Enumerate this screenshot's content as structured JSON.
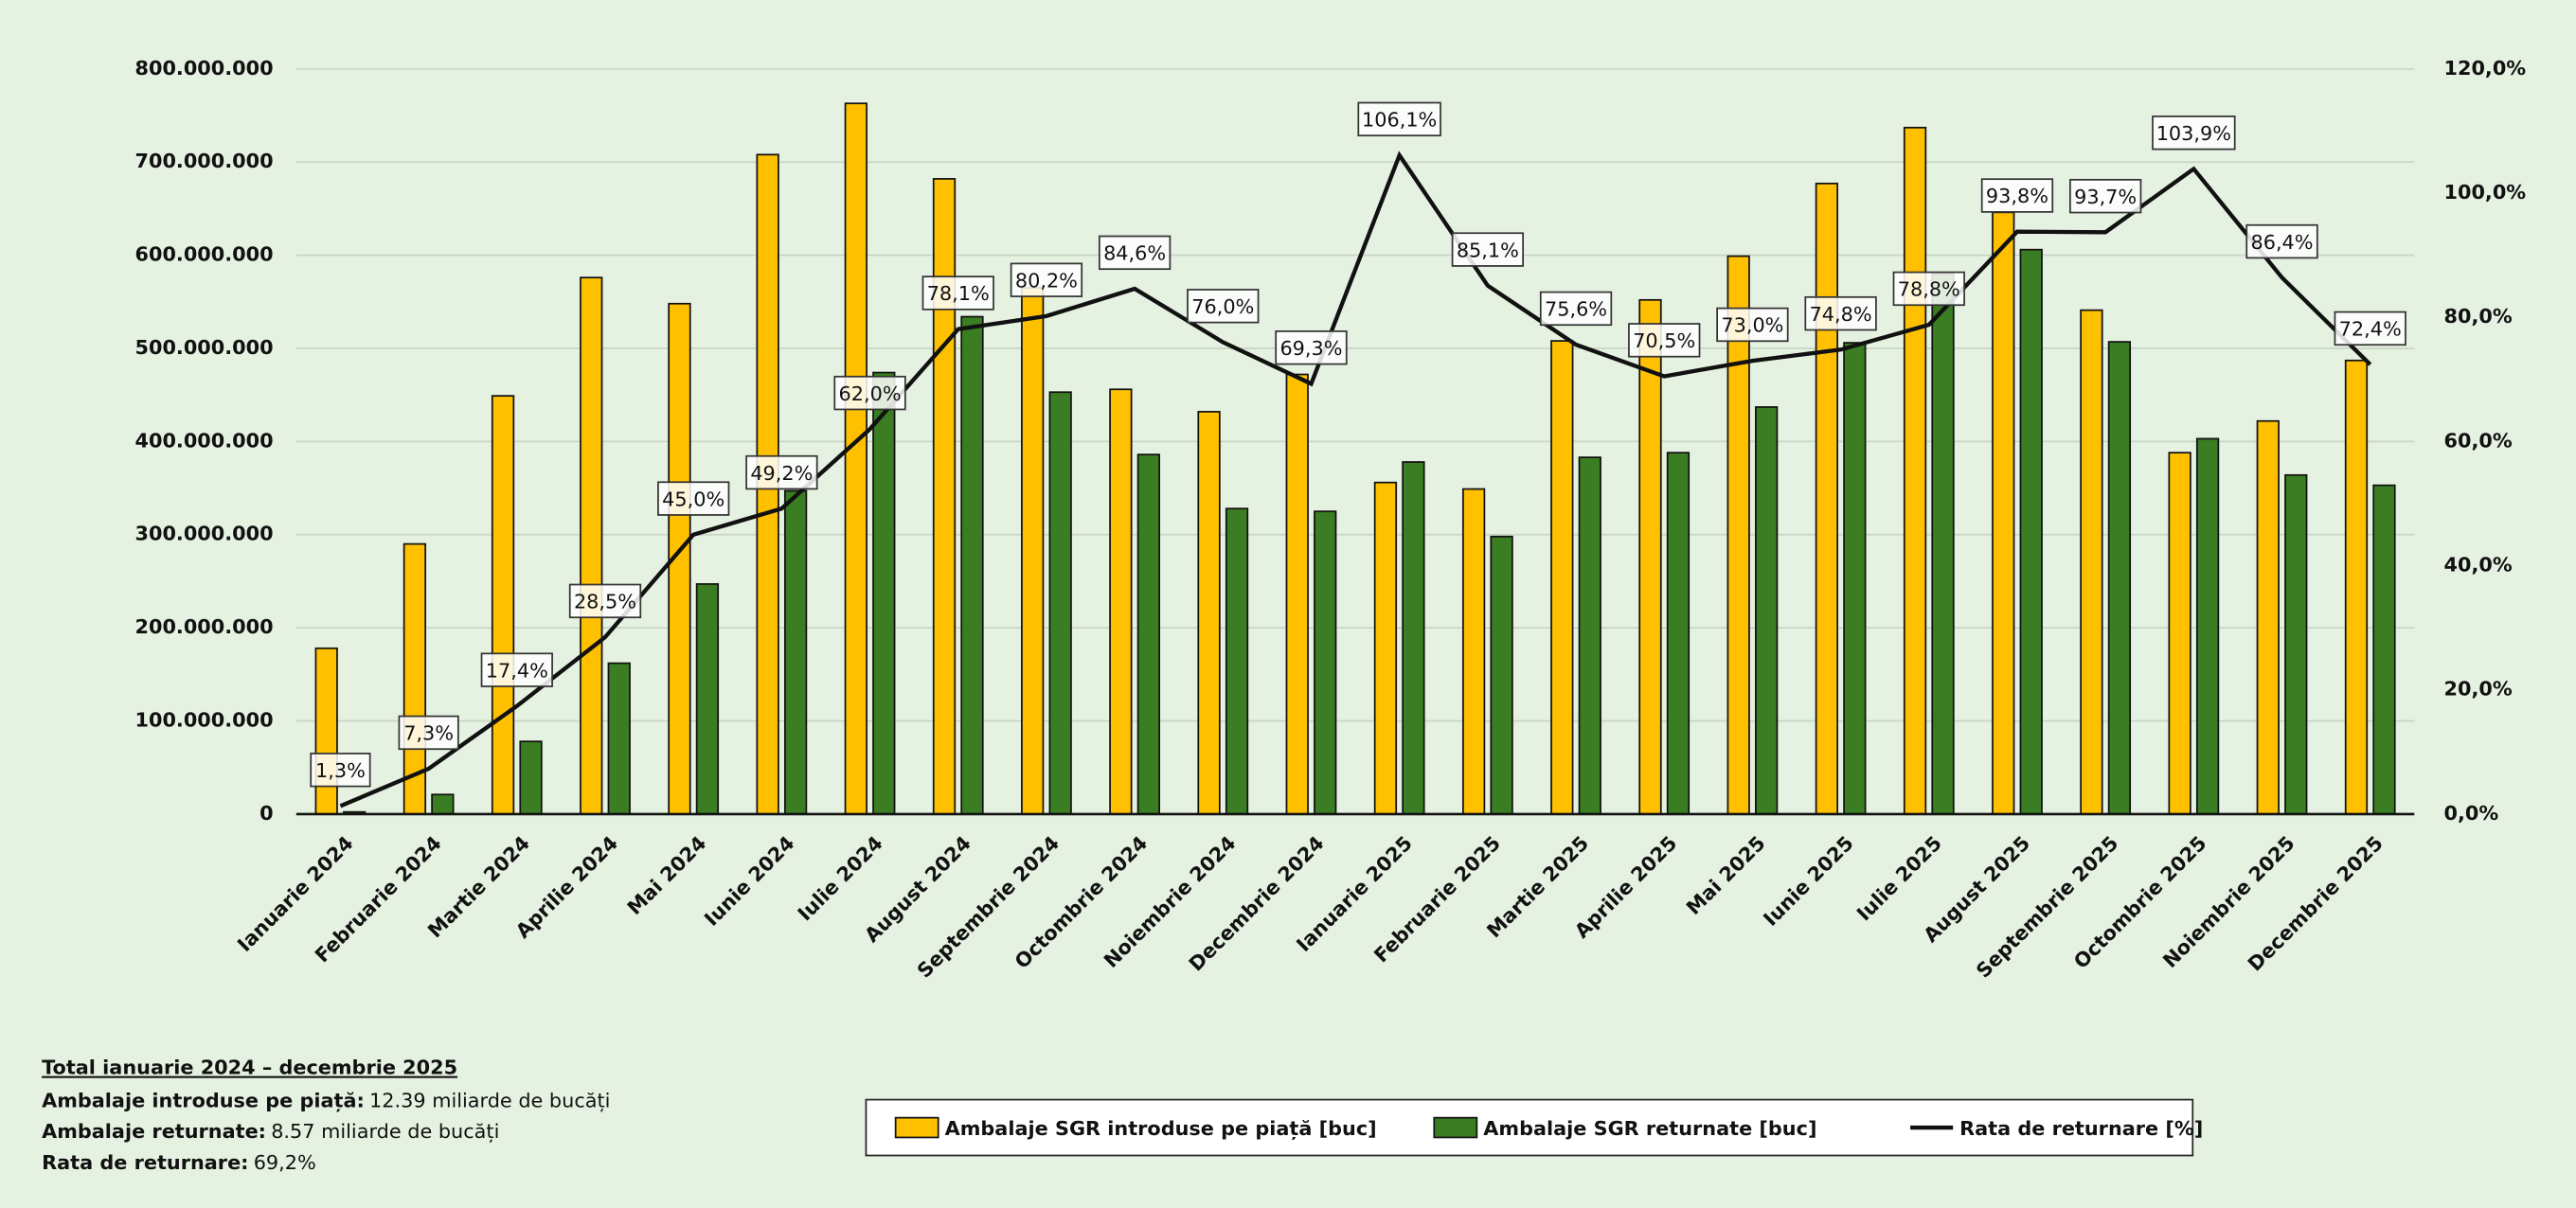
{
  "chart_data": {
    "type": "bar_line",
    "categories": [
      "Ianuarie 2024",
      "Februarie 2024",
      "Martie 2024",
      "Aprilie 2024",
      "Mai 2024",
      "Iunie 2024",
      "Iulie 2024",
      "August 2024",
      "Septembrie 2024",
      "Octombrie 2024",
      "Noiembrie 2024",
      "Decembrie 2024",
      "Ianuarie 2025",
      "Februarie 2025",
      "Martie 2025",
      "Aprilie 2025",
      "Mai 2025",
      "Iunie 2025",
      "Iulie 2025",
      "August 2025",
      "Septembrie 2025",
      "Octombrie 2025",
      "Noiembrie 2025",
      "Decembrie 2025"
    ],
    "series": [
      {
        "name": "Ambalaje SGR introduse pe piață [buc]",
        "color": "#ffc000",
        "type": "bar",
        "values": [
          178000000,
          290000000,
          449000000,
          576000000,
          548000000,
          708000000,
          763000000,
          682000000,
          565000000,
          456000000,
          432000000,
          472000000,
          356000000,
          349000000,
          508000000,
          552000000,
          599000000,
          677000000,
          737000000,
          646000000,
          541000000,
          388000000,
          422000000,
          487000000
        ]
      },
      {
        "name": "Ambalaje SGR returnate [buc]",
        "color": "#3a7d22",
        "type": "bar",
        "values": [
          2300000,
          21000000,
          78000000,
          162000000,
          247000000,
          347000000,
          474000000,
          534000000,
          453000000,
          386000000,
          328000000,
          325000000,
          378000000,
          298000000,
          383000000,
          388000000,
          437000000,
          506000000,
          580000000,
          606000000,
          507000000,
          403000000,
          364000000,
          353000000
        ]
      },
      {
        "name": "Rata de returnare [%]",
        "color": "#111111",
        "type": "line",
        "axis": "y2",
        "values": [
          1.3,
          7.3,
          17.4,
          28.5,
          45.0,
          49.2,
          62.0,
          78.1,
          80.2,
          84.6,
          76.0,
          69.3,
          106.1,
          85.1,
          75.6,
          70.5,
          73.0,
          74.8,
          78.8,
          93.8,
          93.7,
          103.9,
          86.4,
          72.4
        ],
        "value_labels": [
          "1,3%",
          "7,3%",
          "17,4%",
          "28,5%",
          "45,0%",
          "49,2%",
          "62,0%",
          "78,1%",
          "80,2%",
          "84,6%",
          "76,0%",
          "69,3%",
          "106,1%",
          "85,1%",
          "75,6%",
          "70,5%",
          "73,0%",
          "74,8%",
          "78,8%",
          "93,8%",
          "93,7%",
          "103,9%",
          "86,4%",
          "72,4%"
        ]
      }
    ],
    "ylim": [
      0,
      800000000
    ],
    "yticks": [
      0,
      {
        "value": 100000000,
        "label": "100.000.000"
      },
      {
        "value": 200000000,
        "label": "200.000.000"
      },
      {
        "value": 300000000,
        "label": "300.000.000"
      },
      {
        "value": 400000000,
        "label": "400.000.000"
      },
      {
        "value": 500000000,
        "label": "500.000.000"
      },
      {
        "value": 600000000,
        "label": "600.000.000"
      },
      {
        "value": 700000000,
        "label": "700.000.000"
      },
      {
        "value": 800000000,
        "label": "800.000.000"
      }
    ],
    "y2lim": [
      0,
      120
    ],
    "y2ticks": [
      {
        "value": 0,
        "label": "0,0%"
      },
      {
        "value": 20,
        "label": "20,0%"
      },
      {
        "value": 40,
        "label": "40,0%"
      },
      {
        "value": 60,
        "label": "60,0%"
      },
      {
        "value": 80,
        "label": "80,0%"
      },
      {
        "value": 100,
        "label": "100,0%"
      },
      {
        "value": 120,
        "label": "120,0%"
      }
    ],
    "grid": true,
    "legend": "bottom"
  },
  "summary": {
    "title": "Total ianuarie 2024 – decembrie 2025",
    "items": [
      {
        "label": "Ambalaje introduse pe piață:",
        "value": "12.39 miliarde de bucăți"
      },
      {
        "label": "Ambalaje returnate:",
        "value": "8.57 miliarde de bucăți"
      },
      {
        "label": "Rata de returnare:",
        "value": "69,2%"
      }
    ]
  }
}
